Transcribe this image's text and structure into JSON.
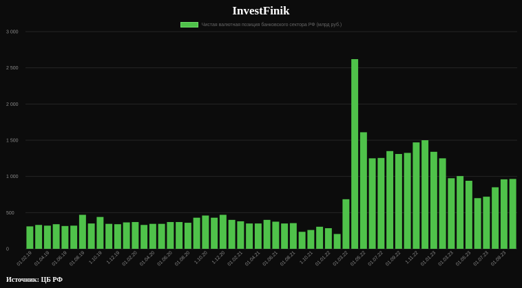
{
  "chart_data": {
    "type": "bar",
    "title": "InvestFinik",
    "legend": {
      "position": "top-center"
    },
    "series": [
      {
        "name": "Чистая валютная позиция банковского сектора РФ (млрд руб.)",
        "color": "#4fc24a",
        "values": [
          310,
          330,
          320,
          340,
          315,
          320,
          470,
          350,
          440,
          345,
          340,
          365,
          370,
          330,
          345,
          345,
          370,
          370,
          360,
          430,
          460,
          430,
          470,
          400,
          380,
          350,
          350,
          400,
          375,
          350,
          355,
          235,
          260,
          305,
          285,
          205,
          685,
          2620,
          1610,
          1250,
          1255,
          1350,
          1310,
          1325,
          1470,
          1500,
          1340,
          1250,
          975,
          1005,
          940,
          700,
          720,
          850,
          960,
          965
        ]
      }
    ],
    "x_tick_labels": [
      "01.02.19",
      "01.04.19",
      "01.06.19",
      "01.08.19",
      "1.10.19",
      "1.12.19",
      "01.02.20",
      "01.04.20",
      "01.06.20",
      "01.08.20",
      "1.10.20",
      "1.12.20",
      "01.02.21",
      "01.04.21",
      "01.06.21",
      "01.08.21",
      "1.10.21",
      "01.01.22",
      "01.03.22",
      "01.05.22",
      "01.07.22",
      "01.09.22",
      "1.11.22",
      "01.01.23",
      "01.03.23",
      "01.05.23",
      "01.07.23",
      "01.09.23"
    ],
    "x_tick_bar_index": [
      0,
      2,
      4,
      6,
      8,
      10,
      12,
      14,
      16,
      18,
      20,
      22,
      24,
      26,
      28,
      30,
      32,
      34,
      36,
      38,
      40,
      42,
      44,
      46,
      48,
      50,
      52,
      54
    ],
    "y_ticks": [
      0,
      500,
      1000,
      1500,
      2000,
      2500,
      3000
    ],
    "y_tick_labels": [
      "0",
      "500",
      "1 000",
      "1 500",
      "2 000",
      "2 500",
      "3 000"
    ],
    "ylim": [
      0,
      3000
    ],
    "grid": true
  },
  "footer": {
    "source": "Источник: ЦБ РФ"
  },
  "colors": {
    "background": "#0c0c0c",
    "grid": "#262626",
    "tick_text": "#8a8a8a",
    "bar": "#4fc24a"
  }
}
